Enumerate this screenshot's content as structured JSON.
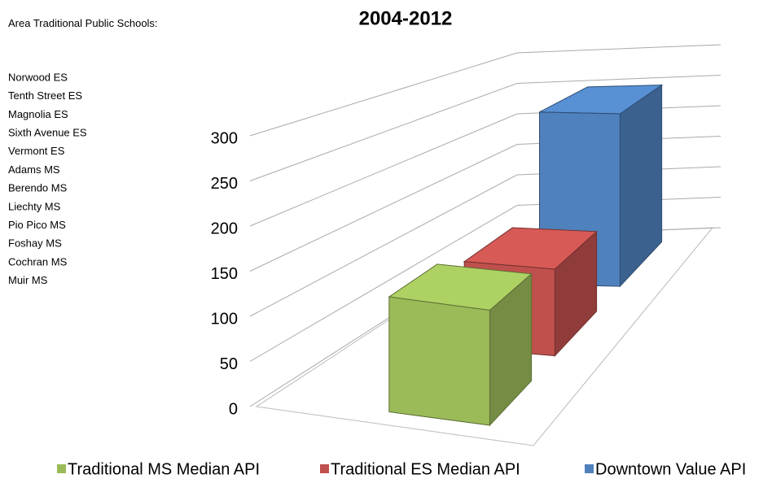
{
  "chart_data": {
    "type": "bar3d",
    "title": "2004-2012",
    "note": "Area Traditional Public Schools:",
    "schools": [
      "Norwood ES",
      "Tenth Street ES",
      "Magnolia ES",
      "Sixth Avenue ES",
      "Vermont ES",
      "Adams MS",
      "Berendo MS",
      "Liechty MS",
      "Pio Pico MS",
      "Foshay MS",
      "Cochran MS",
      "Muir MS"
    ],
    "series": [
      {
        "name": "Traditional MS Median API",
        "color": "#9bbb59",
        "values": [
          130
        ]
      },
      {
        "name": "Traditional ES Median API",
        "color": "#c0504d",
        "values": [
          110
        ]
      },
      {
        "name": "Downtown Value API",
        "color": "#4f81bd",
        "values": [
          250
        ]
      }
    ],
    "ylim": [
      0,
      300
    ],
    "yticks": [
      0,
      50,
      100,
      150,
      200,
      250,
      300
    ],
    "grid": true,
    "legend": "bottom"
  }
}
